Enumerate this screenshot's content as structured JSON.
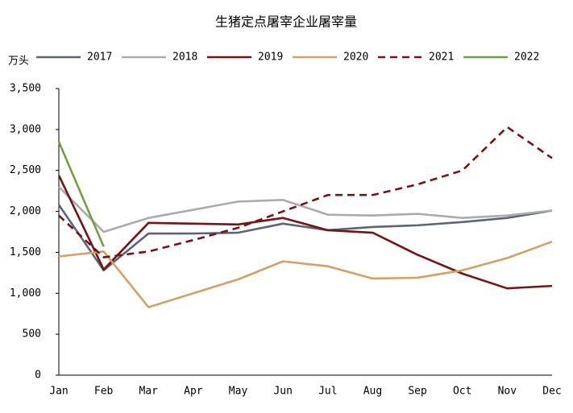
{
  "chart_data": {
    "type": "line",
    "title": "生猪定点屠宰企业屠宰量",
    "y_label": "万头",
    "categories": [
      "Jan",
      "Feb",
      "Mar",
      "Apr",
      "May",
      "Jun",
      "Jul",
      "Aug",
      "Sep",
      "Oct",
      "Nov",
      "Dec"
    ],
    "ylim": [
      0,
      3500
    ],
    "yticks": [
      0,
      500,
      {
        "value": 1000,
        "label": "1,000"
      },
      {
        "value": 1500,
        "label": "1,500"
      },
      {
        "value": 2000,
        "label": "2,000"
      },
      {
        "value": 2500,
        "label": "2,500"
      },
      {
        "value": 3000,
        "label": "3,000"
      },
      {
        "value": 3500,
        "label": "3,500"
      }
    ],
    "grid": false,
    "legend": "top",
    "series": [
      {
        "name": "2017",
        "color": "#5b6479",
        "dash": false,
        "values": [
          2080,
          1280,
          1730,
          1730,
          1740,
          1850,
          1770,
          1810,
          1830,
          1870,
          1920,
          2010
        ]
      },
      {
        "name": "2018",
        "color": "#ababab",
        "dash": false,
        "values": [
          2300,
          1750,
          1920,
          2020,
          2120,
          2140,
          1960,
          1950,
          1970,
          1920,
          1950,
          2010
        ]
      },
      {
        "name": "2019",
        "color": "#7a1212",
        "dash": false,
        "values": [
          2440,
          1290,
          1860,
          1850,
          1840,
          1920,
          1770,
          1740,
          1470,
          1240,
          1060,
          1090
        ]
      },
      {
        "name": "2020",
        "color": "#d3a262",
        "dash": false,
        "values": [
          1450,
          1510,
          830,
          1000,
          1170,
          1390,
          1330,
          1180,
          1190,
          1280,
          1430,
          1630
        ]
      },
      {
        "name": "2021",
        "color": "#7a1212",
        "dash": true,
        "values": [
          1950,
          1440,
          1510,
          1650,
          1800,
          2000,
          2200,
          2200,
          2330,
          2500,
          3030,
          2650
        ]
      },
      {
        "name": "2022",
        "color": "#6fa140",
        "dash": false,
        "values": [
          2850,
          1570,
          null,
          null,
          null,
          null,
          null,
          null,
          null,
          null,
          null,
          null
        ]
      }
    ]
  }
}
